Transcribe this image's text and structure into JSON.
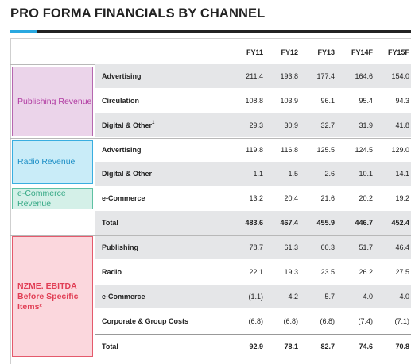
{
  "title": "PRO FORMA FINANCIALS BY CHANNEL",
  "columns": [
    "FY11",
    "FY12",
    "FY13",
    "FY14F",
    "FY15F"
  ],
  "groups": {
    "publishing": "Publishing Revenue",
    "radio": "Radio Revenue",
    "ecommerce": "e-Commerce Revenue",
    "ebitda": "NZME. EBITDA Before Specific Items²"
  },
  "rows": [
    {
      "label": "Advertising",
      "values": [
        "211.4",
        "193.8",
        "177.4",
        "164.6",
        "154.0"
      ]
    },
    {
      "label": "Circulation",
      "values": [
        "108.8",
        "103.9",
        "96.1",
        "95.4",
        "94.3"
      ]
    },
    {
      "label": "Digital & Other",
      "sup": "1",
      "values": [
        "29.3",
        "30.9",
        "32.7",
        "31.9",
        "41.8"
      ]
    },
    {
      "label": "Advertising",
      "values": [
        "119.8",
        "116.8",
        "125.5",
        "124.5",
        "129.0"
      ]
    },
    {
      "label": "Digital & Other",
      "values": [
        "1.1",
        "1.5",
        "2.6",
        "10.1",
        "14.1"
      ]
    },
    {
      "label": "e-Commerce",
      "values": [
        "13.2",
        "20.4",
        "21.6",
        "20.2",
        "19.2"
      ]
    },
    {
      "label": "Total",
      "values": [
        "483.6",
        "467.4",
        "455.9",
        "446.7",
        "452.4"
      ]
    },
    {
      "label": "Publishing",
      "values": [
        "78.7",
        "61.3",
        "60.3",
        "51.7",
        "46.4"
      ]
    },
    {
      "label": "Radio",
      "values": [
        "22.1",
        "19.3",
        "23.5",
        "26.2",
        "27.5"
      ]
    },
    {
      "label": "e-Commerce",
      "values": [
        "(1.1)",
        "4.2",
        "5.7",
        "4.0",
        "4.0"
      ]
    },
    {
      "label": "Corporate & Group Costs",
      "values": [
        "(6.8)",
        "(6.8)",
        "(6.8)",
        "(7.4)",
        "(7.1)"
      ]
    },
    {
      "label": "Total",
      "values": [
        "92.9",
        "78.1",
        "82.7",
        "74.6",
        "70.8"
      ]
    }
  ],
  "colors": {
    "accent": "#29a8e0",
    "publishing": "#b13aa2",
    "radio": "#1d8fc6",
    "ecommerce": "#37a986",
    "ebitda": "#e13e55"
  }
}
